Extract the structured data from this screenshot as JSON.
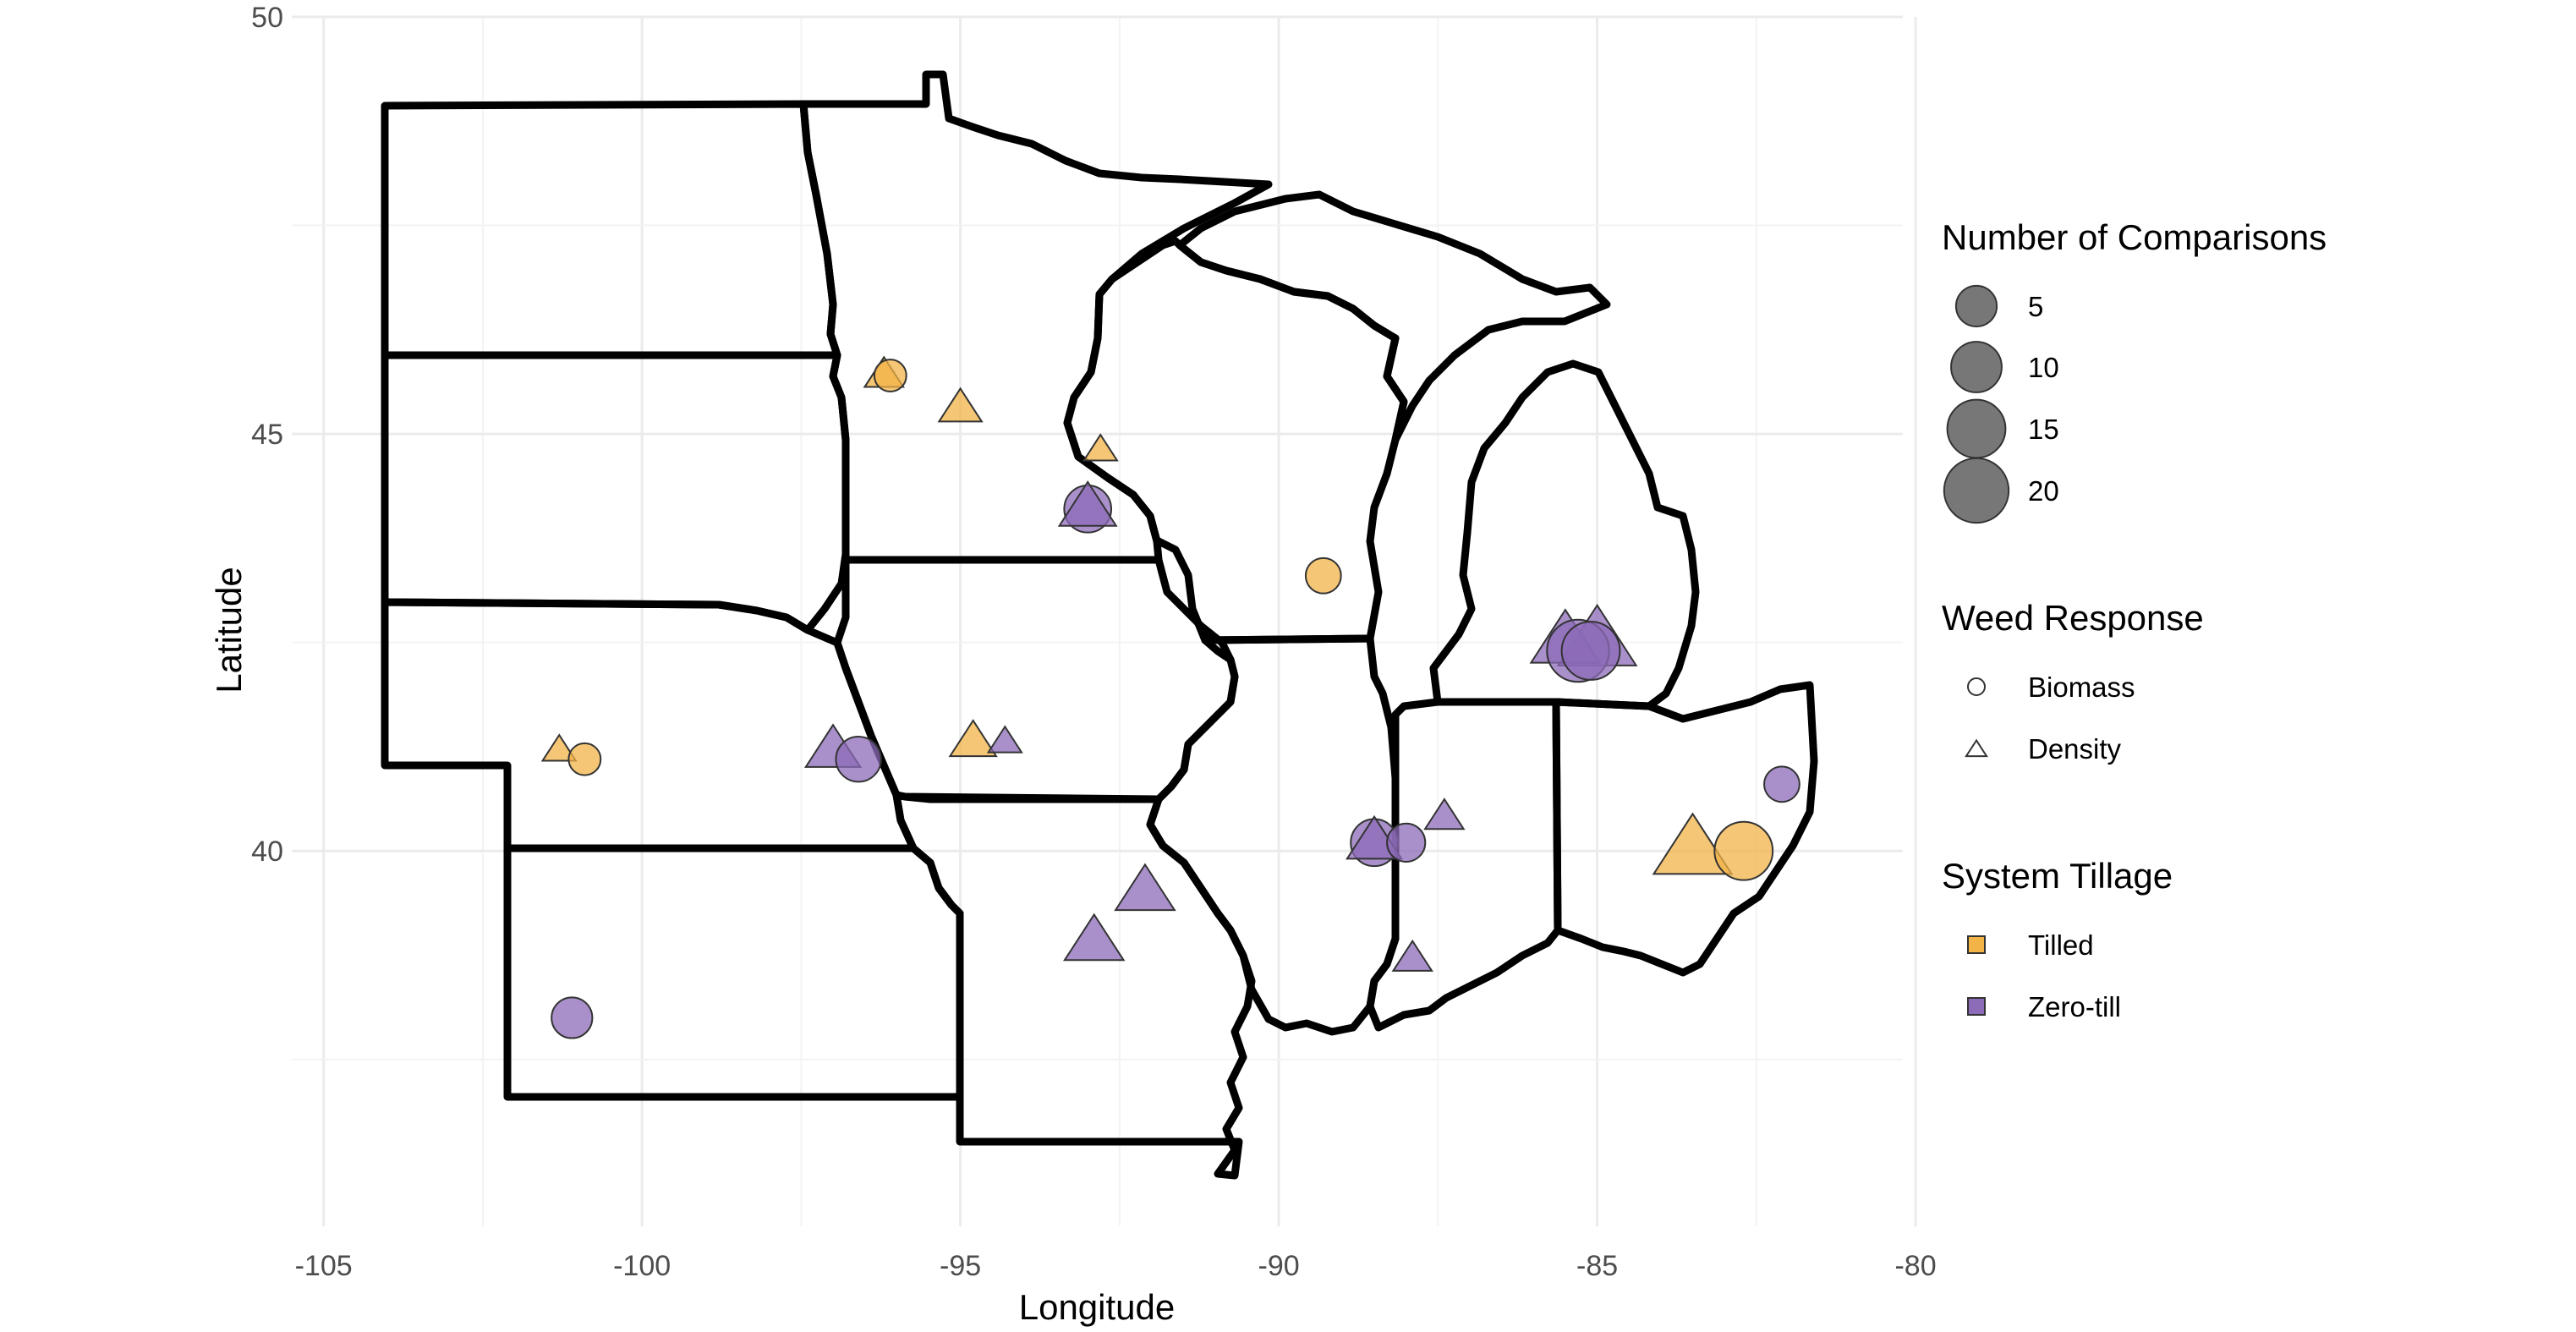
{
  "chart_data": {
    "type": "scatter",
    "title": "",
    "xlabel": "Longitude",
    "ylabel": "Latitude",
    "xlim": [
      -105.5,
      -80.2
    ],
    "ylim": [
      35.5,
      50
    ],
    "x_ticks": [
      -105,
      -100,
      -95,
      -90,
      -85,
      -80
    ],
    "x_tick_labels": [
      "-105",
      "-100",
      "-95",
      "-90",
      "-85",
      "-80"
    ],
    "y_ticks": [
      40,
      45,
      50
    ],
    "y_tick_labels": [
      "40",
      "45",
      "50"
    ],
    "grid": true,
    "legend_position": "right",
    "legends": {
      "size": {
        "title": "Number of Comparisons",
        "entries": [
          {
            "label": "5",
            "value": 5
          },
          {
            "label": "10",
            "value": 10
          },
          {
            "label": "15",
            "value": 15
          },
          {
            "label": "20",
            "value": 20
          }
        ]
      },
      "shape": {
        "title": "Weed Response",
        "entries": [
          {
            "label": "Biomass",
            "shape": "circle"
          },
          {
            "label": "Density",
            "shape": "triangle"
          }
        ]
      },
      "fill": {
        "title": "System Tillage",
        "entries": [
          {
            "label": "Tilled",
            "color": "#f2b347"
          },
          {
            "label": "Zero-till",
            "color": "#8c6bb8"
          }
        ]
      }
    },
    "colors": {
      "Tilled": "#f2b347",
      "Zero-till": "#8c6bb8"
    },
    "points": [
      {
        "lon": -96.2,
        "lat": 45.7,
        "response": "Density",
        "tillage": "Tilled",
        "n": 2
      },
      {
        "lon": -96.1,
        "lat": 45.7,
        "response": "Biomass",
        "tillage": "Tilled",
        "n": 2
      },
      {
        "lon": -95.0,
        "lat": 45.3,
        "response": "Density",
        "tillage": "Tilled",
        "n": 3
      },
      {
        "lon": -92.8,
        "lat": 44.8,
        "response": "Density",
        "tillage": "Tilled",
        "n": 1
      },
      {
        "lon": -93.0,
        "lat": 44.1,
        "response": "Biomass",
        "tillage": "Zero-till",
        "n": 8
      },
      {
        "lon": -93.0,
        "lat": 44.1,
        "response": "Density",
        "tillage": "Zero-till",
        "n": 8
      },
      {
        "lon": -89.3,
        "lat": 43.3,
        "response": "Biomass",
        "tillage": "Tilled",
        "n": 3
      },
      {
        "lon": -101.3,
        "lat": 41.2,
        "response": "Density",
        "tillage": "Tilled",
        "n": 1
      },
      {
        "lon": -100.9,
        "lat": 41.1,
        "response": "Biomass",
        "tillage": "Tilled",
        "n": 2
      },
      {
        "lon": -97.0,
        "lat": 41.2,
        "response": "Density",
        "tillage": "Zero-till",
        "n": 7
      },
      {
        "lon": -96.6,
        "lat": 41.1,
        "response": "Biomass",
        "tillage": "Zero-till",
        "n": 7
      },
      {
        "lon": -94.8,
        "lat": 41.3,
        "response": "Density",
        "tillage": "Tilled",
        "n": 4
      },
      {
        "lon": -94.3,
        "lat": 41.3,
        "response": "Density",
        "tillage": "Zero-till",
        "n": 1
      },
      {
        "lon": -101.1,
        "lat": 38.0,
        "response": "Biomass",
        "tillage": "Zero-till",
        "n": 5
      },
      {
        "lon": -92.9,
        "lat": 38.9,
        "response": "Density",
        "tillage": "Zero-till",
        "n": 9
      },
      {
        "lon": -92.1,
        "lat": 39.5,
        "response": "Density",
        "tillage": "Zero-till",
        "n": 9
      },
      {
        "lon": -88.5,
        "lat": 40.1,
        "response": "Biomass",
        "tillage": "Zero-till",
        "n": 8
      },
      {
        "lon": -88.5,
        "lat": 40.1,
        "response": "Density",
        "tillage": "Zero-till",
        "n": 7
      },
      {
        "lon": -88.0,
        "lat": 40.1,
        "response": "Biomass",
        "tillage": "Zero-till",
        "n": 4
      },
      {
        "lon": -87.4,
        "lat": 40.4,
        "response": "Density",
        "tillage": "Zero-till",
        "n": 2
      },
      {
        "lon": -87.9,
        "lat": 38.7,
        "response": "Density",
        "tillage": "Zero-till",
        "n": 2
      },
      {
        "lon": -85.0,
        "lat": 42.5,
        "response": "Density",
        "tillage": "Zero-till",
        "n": 20
      },
      {
        "lon": -85.5,
        "lat": 42.5,
        "response": "Density",
        "tillage": "Zero-till",
        "n": 14
      },
      {
        "lon": -85.3,
        "lat": 42.4,
        "response": "Biomass",
        "tillage": "Zero-till",
        "n": 18
      },
      {
        "lon": -85.1,
        "lat": 42.4,
        "response": "Biomass",
        "tillage": "Zero-till",
        "n": 15
      },
      {
        "lon": -83.5,
        "lat": 40.0,
        "response": "Density",
        "tillage": "Tilled",
        "n": 20
      },
      {
        "lon": -82.7,
        "lat": 40.0,
        "response": "Biomass",
        "tillage": "Tilled",
        "n": 15
      },
      {
        "lon": -82.1,
        "lat": 40.8,
        "response": "Biomass",
        "tillage": "Zero-till",
        "n": 3
      }
    ]
  }
}
